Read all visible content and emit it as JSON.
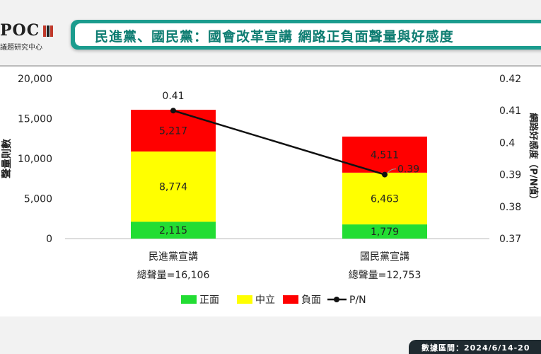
{
  "header": {
    "logo_text": "POC",
    "logo_sub": "議題研究中心",
    "title": "民進黨、國民黨：國會改革宣講 網路正負面聲量與好感度"
  },
  "footer": {
    "text": "數據區間：2024/6/14-20"
  },
  "colors": {
    "positive": "#22dd33",
    "neutral": "#ffff00",
    "negative": "#ff0000",
    "line": "#111111",
    "banner": "#1b9c8e"
  },
  "chart_data": {
    "type": "bar",
    "stacked": true,
    "categories": [
      "民進黨宣講",
      "國民黨宣講"
    ],
    "category_totals": [
      "總聲量=16,106",
      "總聲量=12,753"
    ],
    "series": [
      {
        "name": "正面",
        "values": [
          2115,
          1779
        ],
        "labels": [
          "2,115",
          "1,779"
        ]
      },
      {
        "name": "中立",
        "values": [
          8774,
          6463
        ],
        "labels": [
          "8,774",
          "6,463"
        ]
      },
      {
        "name": "負面",
        "values": [
          5217,
          4511
        ],
        "labels": [
          "5,217",
          "4,511"
        ]
      }
    ],
    "line_series": {
      "name": "P/N",
      "values": [
        0.41,
        0.39
      ],
      "labels": [
        "0.41",
        "0.39"
      ]
    },
    "ylabel": "聲量則數",
    "y2label": "網路好感度（P/N值）",
    "ylim": [
      0,
      20000
    ],
    "yticks": [
      "0",
      "5,000",
      "10,000",
      "15,000",
      "20,000"
    ],
    "y2lim": [
      0.37,
      0.42
    ],
    "y2ticks": [
      "0.37",
      "0.38",
      "0.39",
      "0.4",
      "0.41",
      "0.42"
    ],
    "legend_position": "bottom",
    "grid": false
  }
}
